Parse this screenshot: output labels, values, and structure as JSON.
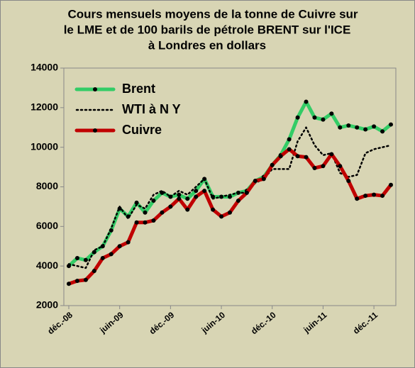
{
  "chart_data": {
    "type": "line",
    "title": [
      "Cours mensuels moyens de la tonne de Cuivre sur",
      "le LME et de 100 barils  de pétrole BRENT sur l'ICE",
      "à Londres en dollars"
    ],
    "categories": [
      "déc.-08",
      null,
      null,
      null,
      null,
      null,
      "juin-09",
      null,
      null,
      null,
      null,
      null,
      "déc.-09",
      null,
      null,
      null,
      null,
      null,
      "juin-10",
      null,
      null,
      null,
      null,
      null,
      "déc.-10",
      null,
      null,
      null,
      null,
      null,
      "juin-11",
      null,
      null,
      null,
      null,
      null,
      "déc.-11",
      null,
      null
    ],
    "series": [
      {
        "name": "Brent",
        "color": "#33cc66",
        "style": "solid",
        "markers": true,
        "values": [
          4000,
          4400,
          4300,
          4700,
          5000,
          5800,
          6900,
          6500,
          7200,
          6700,
          7300,
          7700,
          7500,
          7600,
          7400,
          7800,
          8400,
          7500,
          7500,
          7500,
          7700,
          7800,
          8300,
          8500,
          9100,
          9600,
          10400,
          11500,
          12300,
          11500,
          11400,
          11700,
          11000,
          11100,
          11000,
          10900,
          11050,
          10800,
          11150
        ]
      },
      {
        "name": "WTI à N Y",
        "color": "#000000",
        "style": "dotted",
        "markers": false,
        "values": [
          4100,
          4000,
          3900,
          4800,
          5000,
          5900,
          7000,
          6400,
          7100,
          6900,
          7600,
          7800,
          7500,
          7800,
          7600,
          8000,
          8400,
          7400,
          7500,
          7600,
          7700,
          7700,
          8200,
          8400,
          8900,
          8900,
          8900,
          10300,
          11000,
          10100,
          9600,
          9700,
          8700,
          8500,
          8600,
          9700,
          9900,
          10000,
          10100
        ]
      },
      {
        "name": "Cuivre",
        "color": "#c00000",
        "style": "solid",
        "markers": true,
        "values": [
          3100,
          3250,
          3300,
          3750,
          4400,
          4600,
          5000,
          5200,
          6200,
          6200,
          6300,
          6700,
          7000,
          7400,
          6850,
          7500,
          7800,
          6850,
          6500,
          6700,
          7300,
          7700,
          8300,
          8400,
          9100,
          9550,
          9900,
          9550,
          9500,
          8950,
          9050,
          9650,
          9050,
          8300,
          7400,
          7550,
          7600,
          7550,
          8100
        ]
      }
    ],
    "ylim": [
      2000,
      14000
    ],
    "yticks": [
      2000,
      4000,
      6000,
      8000,
      10000,
      12000,
      14000
    ]
  }
}
